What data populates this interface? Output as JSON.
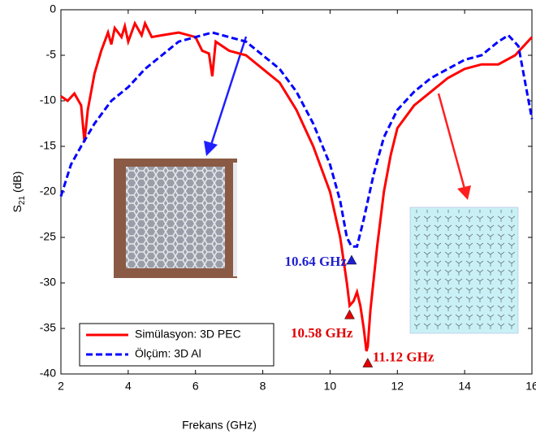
{
  "chart_data": {
    "type": "line",
    "xlabel": "Frekans (GHz)",
    "ylabel": [
      "S",
      "21",
      " (dB)"
    ],
    "xlim": [
      2,
      16
    ],
    "ylim": [
      -40,
      0
    ],
    "xticks": [
      2,
      4,
      6,
      8,
      10,
      12,
      14,
      16
    ],
    "yticks": [
      0,
      -5,
      -10,
      -15,
      -20,
      -25,
      -30,
      -35,
      -40
    ],
    "grid": false,
    "legend": "lower left",
    "series": [
      {
        "name": "Simülasyon: 3D PEC",
        "color": "#ff0000",
        "dash": false,
        "x": [
          2,
          2.2,
          2.4,
          2.6,
          2.7,
          2.8,
          3.0,
          3.2,
          3.4,
          3.5,
          3.6,
          3.8,
          3.9,
          4.0,
          4.2,
          4.4,
          4.5,
          4.7,
          5,
          5.5,
          6,
          6.2,
          6.4,
          6.5,
          6.6,
          7,
          7.5,
          8,
          8.5,
          9,
          9.5,
          10,
          10.3,
          10.5,
          10.58,
          10.7,
          10.8,
          10.9,
          11.0,
          11.08,
          11.12,
          11.2,
          11.4,
          11.6,
          11.8,
          12,
          12.5,
          13,
          13.5,
          14,
          14.5,
          15,
          15.5,
          16
        ],
        "values": [
          -9.5,
          -10,
          -9.2,
          -10.5,
          -14.5,
          -11,
          -7,
          -4.5,
          -2.5,
          -3.8,
          -2,
          -3,
          -1.8,
          -3.5,
          -1.5,
          -2.8,
          -1.5,
          -3,
          -2.8,
          -2.5,
          -3,
          -4.5,
          -4.8,
          -7.3,
          -3.5,
          -4.5,
          -5,
          -6.5,
          -8,
          -11,
          -15,
          -20,
          -25,
          -30,
          -32.5,
          -32,
          -31,
          -32.5,
          -35,
          -37.5,
          -37,
          -33,
          -26,
          -20,
          -16,
          -13,
          -10.5,
          -9,
          -7.5,
          -6.5,
          -6,
          -6,
          -5,
          -3
        ]
      },
      {
        "name": "Ölçüm: 3D Al",
        "color": "#0000ff",
        "dash": true,
        "x": [
          2,
          2.3,
          2.6,
          3,
          3.5,
          4,
          4.5,
          5,
          5.5,
          6,
          6.5,
          7,
          7.5,
          8,
          8.5,
          9,
          9.5,
          10,
          10.3,
          10.5,
          10.64,
          10.8,
          11,
          11.3,
          11.6,
          12,
          12.5,
          13,
          13.5,
          14,
          14.5,
          15,
          15.3,
          15.6,
          16
        ],
        "values": [
          -20.5,
          -17,
          -15,
          -12.5,
          -10,
          -8.5,
          -6.5,
          -5,
          -3.5,
          -3,
          -2.5,
          -3,
          -3.5,
          -5,
          -6.5,
          -9,
          -12.5,
          -17,
          -21,
          -25,
          -26,
          -26,
          -23,
          -18,
          -14,
          -11,
          -9,
          -7.5,
          -6.5,
          -5.5,
          -5,
          -3.5,
          -2.8,
          -4,
          -12
        ]
      }
    ],
    "annotations": [
      {
        "text": "10.64 GHz",
        "x": 10.64,
        "y": -27.5,
        "color": "#1f1fd0",
        "side": "left"
      },
      {
        "text": "10.58 GHz",
        "x": 10.58,
        "y": -33.5,
        "color": "#e00000",
        "side": "below-left"
      },
      {
        "text": "11.12 GHz",
        "x": 11.12,
        "y": -38.8,
        "color": "#e00000",
        "side": "right"
      }
    ]
  }
}
